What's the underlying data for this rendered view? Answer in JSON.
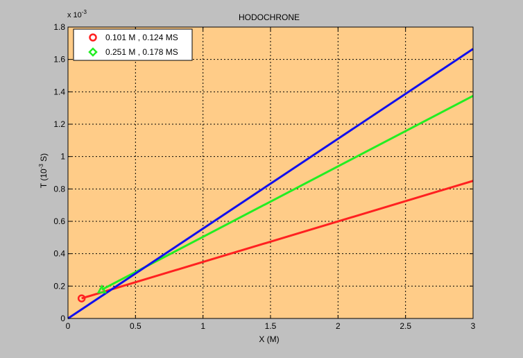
{
  "colors": {
    "figure_bg": "#c0c0c0",
    "axes_bg": "#ffcc88",
    "grid": "#000000",
    "red": "#ff2020",
    "green": "#22ee22",
    "blue": "#1010ee"
  },
  "chart_data": {
    "type": "line",
    "title": "HODOCHRONE",
    "xlabel": "X (M)",
    "ylabel_base": "T (10",
    "ylabel_exp": "-3",
    "ylabel_tail": " S)",
    "y_multiplier_base": "x 10",
    "y_multiplier_exp": "-3",
    "xlim": [
      0,
      3
    ],
    "ylim": [
      0,
      1.8
    ],
    "grid": true,
    "grid_style": "dotted",
    "legend_position": "top-left",
    "x_ticks": [
      "0",
      "0.5",
      "1",
      "1.5",
      "2",
      "2.5",
      "3"
    ],
    "y_ticks": [
      "0",
      "0.2",
      "0.4",
      "0.6",
      "0.8",
      "1",
      "1.2",
      "1.4",
      "1.6",
      "1.8"
    ],
    "legend": [
      {
        "label": "0.101 M , 0.124 MS",
        "color": "#ff2020",
        "marker": "circle"
      },
      {
        "label": "0.251 M , 0.178 MS",
        "color": "#22ee22",
        "marker": "diamond"
      }
    ],
    "series": [
      {
        "color": "#ff2020",
        "marker": "circle",
        "points": [
          [
            0.101,
            0.124
          ],
          [
            3.0,
            0.85
          ]
        ]
      },
      {
        "color": "#22ee22",
        "marker": "triangle",
        "points": [
          [
            0.251,
            0.178
          ],
          [
            3.0,
            1.375
          ]
        ]
      },
      {
        "color": "#1010ee",
        "marker": "none",
        "points": [
          [
            0.0,
            0.0
          ],
          [
            3.0,
            1.665
          ]
        ]
      }
    ],
    "markers": [
      {
        "x": 0.101,
        "y": 0.124,
        "shape": "circle",
        "color": "#ff2020"
      },
      {
        "x": 0.251,
        "y": 0.178,
        "shape": "triangle",
        "color": "#22ee22"
      }
    ]
  }
}
